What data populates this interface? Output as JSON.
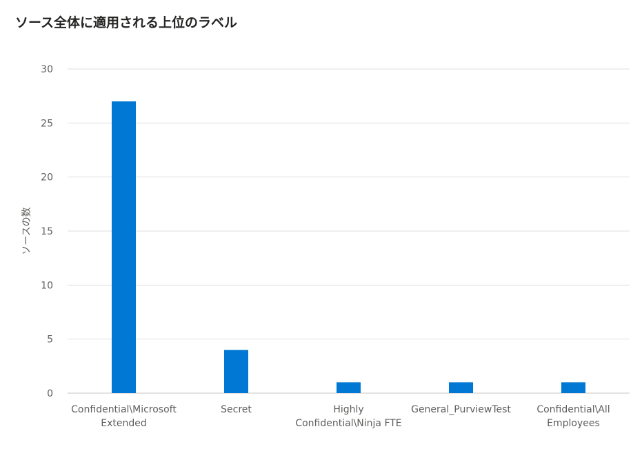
{
  "title": "ソース全体に適用される上位のラベル",
  "chart_data": {
    "type": "bar",
    "title": "ソース全体に適用される上位のラベル",
    "ylabel": "ソースの数",
    "xlabel": "",
    "ylim": [
      0,
      30
    ],
    "yticks": [
      0,
      5,
      10,
      15,
      20,
      25,
      30
    ],
    "grid": true,
    "bar_color": "#0078d4",
    "categories": [
      [
        "Confidential\\Microsoft",
        "Extended"
      ],
      [
        "Secret"
      ],
      [
        "Highly",
        "Confidential\\Ninja FTE"
      ],
      [
        "General_PurviewTest"
      ],
      [
        "Confidential\\All",
        "Employees"
      ]
    ],
    "values": [
      27,
      4,
      1,
      1,
      1
    ]
  }
}
